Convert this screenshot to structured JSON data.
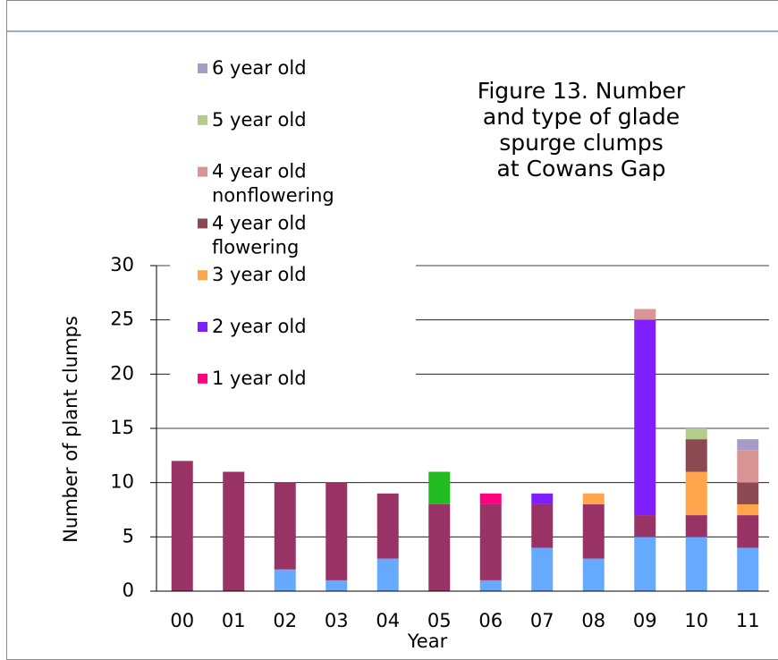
{
  "chart_data": {
    "type": "stacked_bar",
    "title": [
      "Figure 13. Number",
      "and type of glade",
      "spurge  clumps",
      " at Cowans Gap"
    ],
    "x_label": "Year",
    "y_label": "Number of plant clumps",
    "categories": [
      "00",
      "01",
      "02",
      "03",
      "04",
      "05",
      "06",
      "07",
      "08",
      "09",
      "10",
      "11"
    ],
    "ylim": [
      0,
      30
    ],
    "yticks": [
      0,
      5,
      10,
      15,
      20,
      25,
      30
    ],
    "grid": true,
    "series": [
      {
        "color": "#66aaff",
        "values": [
          0,
          0,
          2,
          1,
          3,
          0,
          1,
          4,
          3,
          5,
          5,
          4
        ]
      },
      {
        "color": "#993366",
        "values": [
          12,
          11,
          8,
          9,
          6,
          8,
          7,
          4,
          5,
          2,
          2,
          3
        ]
      },
      {
        "color": "#22bb22",
        "values": [
          0,
          0,
          0,
          0,
          0,
          3,
          0,
          0,
          0,
          0,
          0,
          0
        ]
      },
      {
        "name": "1 year old",
        "color": "#ff0080",
        "values": [
          0,
          0,
          0,
          0,
          0,
          0,
          1,
          0,
          0,
          0,
          0,
          0
        ]
      },
      {
        "name": "2 year old",
        "color": "#7f1fff",
        "values": [
          0,
          0,
          0,
          0,
          0,
          0,
          0,
          1,
          0,
          18,
          0,
          0
        ]
      },
      {
        "name": "3 year old",
        "color": "#ffa64d",
        "values": [
          0,
          0,
          0,
          0,
          0,
          0,
          0,
          0,
          1,
          0,
          4,
          1
        ]
      },
      {
        "name": "4 year old flowering",
        "color": "#8b4a52",
        "values": [
          0,
          0,
          0,
          0,
          0,
          0,
          0,
          0,
          0,
          0,
          3,
          2
        ]
      },
      {
        "name": "4 year old nonflowering",
        "color": "#d99594",
        "values": [
          0,
          0,
          0,
          0,
          0,
          0,
          0,
          0,
          0,
          1,
          0,
          3
        ]
      },
      {
        "name": "5 year old",
        "color": "#b3cc8a",
        "values": [
          0,
          0,
          0,
          0,
          0,
          0,
          0,
          0,
          0,
          0,
          1,
          0
        ]
      },
      {
        "name": "6 year old",
        "color": "#a99bc8",
        "values": [
          0,
          0,
          0,
          0,
          0,
          0,
          0,
          0,
          0,
          0,
          0,
          1
        ]
      }
    ]
  }
}
